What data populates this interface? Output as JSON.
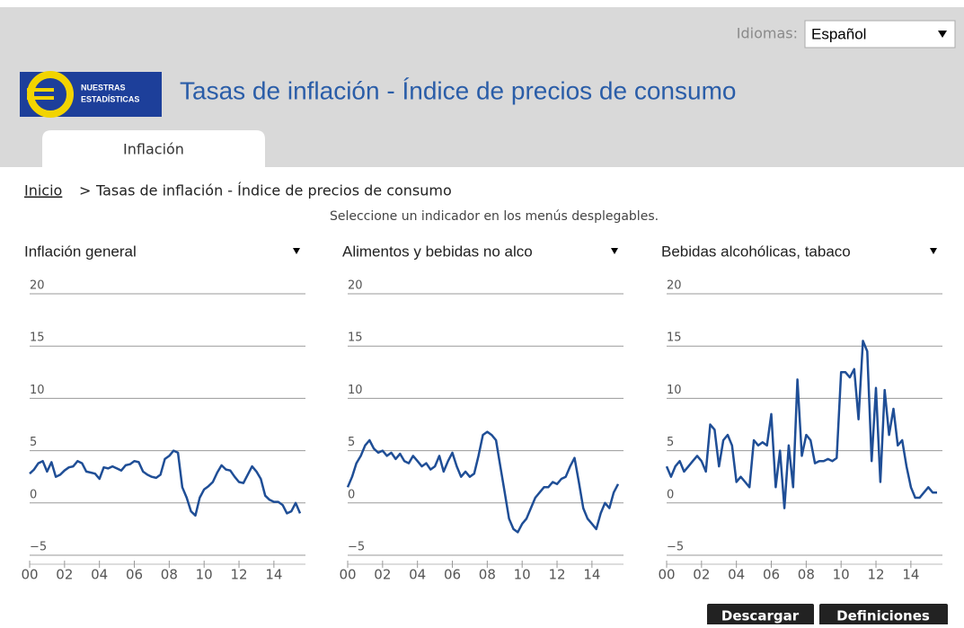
{
  "header": {
    "language_label": "Idiomas:",
    "language": "Español",
    "logo_line1": "NUESTRAS",
    "logo_line2": "ESTADÍSTICAS",
    "title": "Tasas de inflación - Índice de precios de consumo"
  },
  "nav": {
    "tab": "Inflación"
  },
  "breadcrumb": {
    "home": "Inicio",
    "separator": ">",
    "current": "Tasas de inflación - Índice de precios de consumo"
  },
  "instruction": "Seleccione un indicador en los menús desplegables.",
  "buttons": [
    "Descargar",
    "Definiciones"
  ],
  "chart_data": [
    {
      "type": "line",
      "title": "Inflación general",
      "color": "#1f4e96",
      "grid": true,
      "xlim": [
        2000,
        2015.5
      ],
      "xticks": [
        {
          "value": 2000,
          "label": "00"
        },
        {
          "value": 2002,
          "label": "02"
        },
        {
          "value": 2004,
          "label": "04"
        },
        {
          "value": 2006,
          "label": "06"
        },
        {
          "value": 2008,
          "label": "08"
        },
        {
          "value": 2010,
          "label": "10"
        },
        {
          "value": 2012,
          "label": "12"
        },
        {
          "value": 2014,
          "label": "14"
        }
      ],
      "ylim": [
        -5,
        20
      ],
      "yticks": [
        {
          "value": -5,
          "label": "−5"
        },
        0,
        5,
        10,
        15,
        20
      ],
      "x": [
        2000,
        2000.25,
        2000.5,
        2000.75,
        2001,
        2001.25,
        2001.5,
        2001.75,
        2002,
        2002.25,
        2002.5,
        2002.75,
        2003,
        2003.25,
        2003.5,
        2003.75,
        2004,
        2004.25,
        2004.5,
        2004.75,
        2005,
        2005.25,
        2005.5,
        2005.75,
        2006,
        2006.25,
        2006.5,
        2006.75,
        2007,
        2007.25,
        2007.5,
        2007.75,
        2008,
        2008.25,
        2008.5,
        2008.75,
        2009,
        2009.25,
        2009.5,
        2009.75,
        2010,
        2010.25,
        2010.5,
        2010.75,
        2011,
        2011.25,
        2011.5,
        2011.75,
        2012,
        2012.25,
        2012.5,
        2012.75,
        2013,
        2013.25,
        2013.5,
        2013.75,
        2014,
        2014.25,
        2014.5,
        2014.75,
        2015,
        2015.25,
        2015.5
      ],
      "values": [
        2.8,
        3.2,
        3.8,
        4.0,
        3.0,
        3.9,
        2.5,
        2.7,
        3.1,
        3.4,
        3.5,
        4.0,
        3.8,
        3.0,
        2.9,
        2.8,
        2.3,
        3.4,
        3.3,
        3.5,
        3.3,
        3.1,
        3.6,
        3.7,
        4.0,
        3.9,
        3.0,
        2.7,
        2.5,
        2.4,
        2.7,
        4.2,
        4.5,
        5.0,
        4.8,
        1.5,
        0.5,
        -0.8,
        -1.2,
        0.5,
        1.3,
        1.6,
        2.0,
        2.9,
        3.6,
        3.2,
        3.1,
        2.5,
        2.0,
        1.9,
        2.7,
        3.5,
        3.0,
        2.3,
        0.7,
        0.3,
        0.1,
        0.1,
        -0.2,
        -1.0,
        -0.8,
        0.0,
        -1.0
      ]
    },
    {
      "type": "line",
      "title": "Alimentos y bebidas no alco",
      "color": "#1f4e96",
      "grid": true,
      "xlim": [
        2000,
        2015.5
      ],
      "xticks": [
        {
          "value": 2000,
          "label": "00"
        },
        {
          "value": 2002,
          "label": "02"
        },
        {
          "value": 2004,
          "label": "04"
        },
        {
          "value": 2006,
          "label": "06"
        },
        {
          "value": 2008,
          "label": "08"
        },
        {
          "value": 2010,
          "label": "10"
        },
        {
          "value": 2012,
          "label": "12"
        },
        {
          "value": 2014,
          "label": "14"
        }
      ],
      "ylim": [
        -5,
        20
      ],
      "yticks": [
        {
          "value": -5,
          "label": "−5"
        },
        0,
        5,
        10,
        15,
        20
      ],
      "x": [
        2000,
        2000.25,
        2000.5,
        2000.75,
        2001,
        2001.25,
        2001.5,
        2001.75,
        2002,
        2002.25,
        2002.5,
        2002.75,
        2003,
        2003.25,
        2003.5,
        2003.75,
        2004,
        2004.25,
        2004.5,
        2004.75,
        2005,
        2005.25,
        2005.5,
        2005.75,
        2006,
        2006.25,
        2006.5,
        2006.75,
        2007,
        2007.25,
        2007.5,
        2007.75,
        2008,
        2008.25,
        2008.5,
        2008.75,
        2009,
        2009.25,
        2009.5,
        2009.75,
        2010,
        2010.25,
        2010.5,
        2010.75,
        2011,
        2011.25,
        2011.5,
        2011.75,
        2012,
        2012.25,
        2012.5,
        2012.75,
        2013,
        2013.25,
        2013.5,
        2013.75,
        2014,
        2014.25,
        2014.5,
        2014.75,
        2015,
        2015.25,
        2015.5
      ],
      "values": [
        1.5,
        2.5,
        3.8,
        4.5,
        5.5,
        6.0,
        5.2,
        4.8,
        5.0,
        4.5,
        4.8,
        4.2,
        4.7,
        4.0,
        3.8,
        4.5,
        4.0,
        3.5,
        3.8,
        3.2,
        3.5,
        4.5,
        3.0,
        4.0,
        4.8,
        3.5,
        2.5,
        3.0,
        2.5,
        2.8,
        4.5,
        6.5,
        6.8,
        6.5,
        6.0,
        3.5,
        1.0,
        -1.5,
        -2.5,
        -2.8,
        -2.0,
        -1.5,
        -0.5,
        0.5,
        1.0,
        1.5,
        1.5,
        2.0,
        1.8,
        2.3,
        2.5,
        3.5,
        4.3,
        2.0,
        -0.5,
        -1.5,
        -2.0,
        -2.5,
        -1.0,
        0.0,
        -0.5,
        1.0,
        1.8
      ]
    },
    {
      "type": "line",
      "title": "Bebidas alcohólicas, tabaco",
      "color": "#1f4e96",
      "grid": true,
      "xlim": [
        2000,
        2015.5
      ],
      "xticks": [
        {
          "value": 2000,
          "label": "00"
        },
        {
          "value": 2002,
          "label": "02"
        },
        {
          "value": 2004,
          "label": "04"
        },
        {
          "value": 2006,
          "label": "06"
        },
        {
          "value": 2008,
          "label": "08"
        },
        {
          "value": 2010,
          "label": "10"
        },
        {
          "value": 2012,
          "label": "12"
        },
        {
          "value": 2014,
          "label": "14"
        }
      ],
      "ylim": [
        -5,
        20
      ],
      "yticks": [
        {
          "value": -5,
          "label": "−5"
        },
        0,
        5,
        10,
        15,
        20
      ],
      "x": [
        2000,
        2000.25,
        2000.5,
        2000.75,
        2001,
        2001.25,
        2001.5,
        2001.75,
        2002,
        2002.25,
        2002.5,
        2002.75,
        2003,
        2003.25,
        2003.5,
        2003.75,
        2004,
        2004.25,
        2004.5,
        2004.75,
        2005,
        2005.25,
        2005.5,
        2005.75,
        2006,
        2006.25,
        2006.5,
        2006.75,
        2007,
        2007.25,
        2007.5,
        2007.75,
        2008,
        2008.25,
        2008.5,
        2008.75,
        2009,
        2009.25,
        2009.5,
        2009.75,
        2010,
        2010.25,
        2010.5,
        2010.75,
        2011,
        2011.25,
        2011.5,
        2011.75,
        2012,
        2012.25,
        2012.5,
        2012.75,
        2013,
        2013.25,
        2013.5,
        2013.75,
        2014,
        2014.25,
        2014.5,
        2014.75,
        2015,
        2015.25,
        2015.5
      ],
      "values": [
        3.5,
        2.5,
        3.5,
        4.0,
        3.0,
        3.5,
        4.0,
        4.5,
        4.0,
        3.0,
        7.5,
        7.0,
        3.5,
        6.0,
        6.5,
        5.5,
        2.0,
        2.5,
        2.0,
        1.5,
        6.0,
        5.5,
        5.8,
        5.5,
        8.5,
        1.5,
        5.0,
        -0.5,
        5.5,
        1.5,
        11.8,
        4.5,
        6.5,
        6.0,
        3.8,
        4.0,
        4.0,
        4.2,
        4.0,
        4.3,
        12.5,
        12.5,
        12.0,
        12.8,
        8.0,
        15.5,
        14.5,
        4.0,
        11.0,
        2.0,
        10.8,
        6.5,
        9.0,
        5.5,
        6.0,
        3.5,
        1.5,
        0.5,
        0.5,
        1.0,
        1.5,
        1.0,
        1.0
      ]
    }
  ]
}
